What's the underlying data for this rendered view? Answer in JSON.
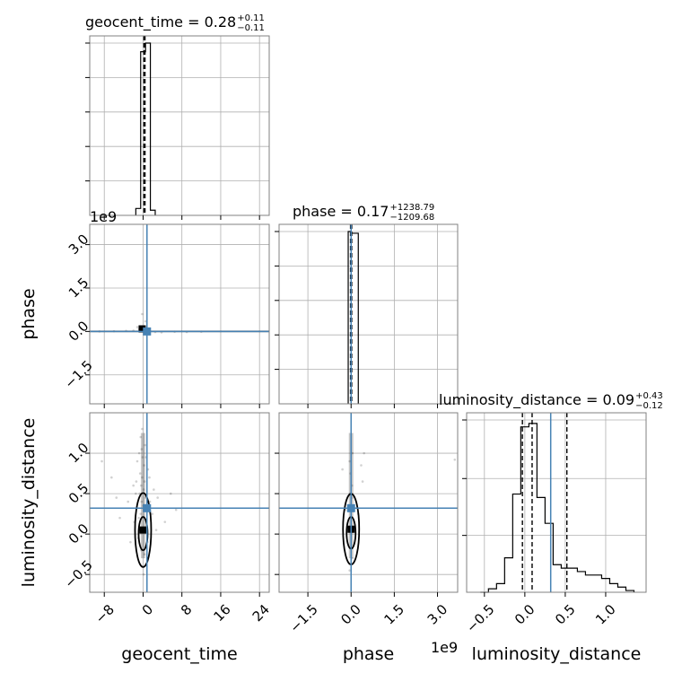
{
  "chart_data": {
    "type": "corner",
    "colors": {
      "truth": "#4682b4",
      "hist": "#000000",
      "grid": "#b0b0b0",
      "frame": "#808080",
      "points": "#000000"
    },
    "grid": true,
    "parameters": [
      {
        "name": "geocent_time",
        "xlabel": "geocent_time",
        "ylabel": "",
        "title": {
          "main": "geocent_time = 0.28",
          "upper": "+0.11",
          "lower": "−0.11"
        },
        "range": [
          -11,
          26
        ],
        "ticks": [
          -8,
          0,
          8,
          16,
          24
        ],
        "tick_labels": [
          "−8",
          "0",
          "8",
          "16",
          "24"
        ],
        "offset_label": "",
        "truth": 0.8,
        "quantiles": [
          0.17,
          0.28,
          0.39
        ],
        "hist_edges": [
          -1.5,
          -0.5,
          0.5,
          1.5,
          2.5
        ],
        "hist_counts": [
          0.04,
          0.95,
          1.0,
          0.03
        ]
      },
      {
        "name": "phase",
        "xlabel": "phase",
        "ylabel": "phase",
        "title": {
          "main": "phase = 0.17",
          "upper": "+1238.79",
          "lower": "−1209.68"
        },
        "range": [
          -2.5,
          3.7
        ],
        "ticks": [
          -1.5,
          0.0,
          1.5,
          3.0
        ],
        "tick_labels": [
          "−1.5",
          "0.0",
          "1.5",
          "3.0"
        ],
        "offset_label": "1e9",
        "truth": 0.0,
        "quantiles": [
          -0.02,
          0.0,
          0.02
        ],
        "hist_edges": [
          -0.1,
          0.0,
          0.25
        ],
        "hist_counts": [
          1.0,
          0.99
        ]
      },
      {
        "name": "luminosity_distance",
        "xlabel": "luminosity_distance",
        "ylabel": "luminosity_distance",
        "title": {
          "main": "luminosity_distance = 0.09",
          "upper": "+0.43",
          "lower": "−0.12"
        },
        "range": [
          -0.72,
          1.5
        ],
        "ticks": [
          -0.5,
          0.0,
          0.5,
          1.0
        ],
        "tick_labels": [
          "−0.5",
          "0.0",
          "0.5",
          "1.0"
        ],
        "offset_label": "",
        "truth": 0.32,
        "quantiles": [
          -0.03,
          0.09,
          0.52
        ],
        "hist_edges": [
          -0.55,
          -0.45,
          -0.35,
          -0.25,
          -0.15,
          -0.05,
          0.05,
          0.15,
          0.25,
          0.35,
          0.45,
          0.55,
          0.65,
          0.75,
          0.85,
          0.95,
          1.05,
          1.15,
          1.25,
          1.35
        ],
        "hist_counts": [
          0.0,
          0.02,
          0.05,
          0.2,
          0.57,
          0.96,
          0.98,
          0.55,
          0.4,
          0.16,
          0.14,
          0.14,
          0.12,
          0.1,
          0.1,
          0.08,
          0.05,
          0.03,
          0.01
        ]
      }
    ],
    "hist_y_ticks": [
      {
        "param": 0,
        "ticks": [
          0.2,
          0.4,
          0.6,
          0.8,
          1.0
        ]
      },
      {
        "param": 1,
        "ticks": [
          0.2,
          0.4,
          0.6,
          0.8,
          1.0
        ]
      },
      {
        "param": 2,
        "ticks": [
          0.33,
          0.66,
          1.0
        ]
      }
    ],
    "contours": [
      {
        "row": 2,
        "col": 0,
        "x": 0.0,
        "y": 0.05,
        "xwidth": 0.35,
        "ywidth": 0.28
      },
      {
        "row": 2,
        "col": 1,
        "x": 0.0,
        "y": 0.06,
        "xwidth": 0.3,
        "ywidth": 0.26
      }
    ],
    "samples_2_0": [
      [
        -0.5,
        1.2
      ],
      [
        -0.3,
        1.05
      ],
      [
        -0.1,
        0.95
      ],
      [
        0.2,
        0.85
      ],
      [
        -0.6,
        0.75
      ],
      [
        -0.2,
        0.7
      ],
      [
        0.3,
        0.65
      ],
      [
        -0.4,
        0.6
      ],
      [
        0.1,
        0.55
      ],
      [
        -0.7,
        0.5
      ],
      [
        0.5,
        0.45
      ],
      [
        -0.3,
        0.4
      ],
      [
        0.0,
        0.35
      ],
      [
        -1.2,
        0.9
      ],
      [
        1.0,
        0.8
      ],
      [
        -1.5,
        0.5
      ],
      [
        1.4,
        0.4
      ],
      [
        -2.0,
        0.6
      ],
      [
        2.2,
        0.55
      ],
      [
        -3.1,
        0.4
      ],
      [
        3.0,
        0.45
      ],
      [
        -4.8,
        0.2
      ],
      [
        4.5,
        0.15
      ],
      [
        -6.5,
        0.7
      ],
      [
        6.8,
        0.3
      ],
      [
        -8.5,
        0.9
      ],
      [
        -0.2,
        1.3
      ],
      [
        0.4,
        1.1
      ],
      [
        -0.9,
        0.2
      ],
      [
        0.7,
        0.1
      ],
      [
        -1.0,
        -0.05
      ],
      [
        0.9,
        -0.1
      ],
      [
        -0.4,
        -0.2
      ],
      [
        0.3,
        -0.25
      ],
      [
        -0.2,
        -0.4
      ],
      [
        0.1,
        -0.5
      ],
      [
        -1.8,
        0.15
      ],
      [
        1.9,
        0.25
      ],
      [
        -2.6,
        -0.1
      ],
      [
        2.7,
        0.05
      ],
      [
        -5.5,
        0.45
      ],
      [
        5.7,
        0.5
      ],
      [
        -0.8,
        1.0
      ],
      [
        0.6,
        0.95
      ],
      [
        -0.5,
        0.25
      ],
      [
        0.2,
        0.3
      ],
      [
        -1.4,
        0.65
      ],
      [
        1.3,
        0.7
      ]
    ],
    "samples_2_1": [
      [
        -0.05,
        0.9
      ],
      [
        0.05,
        1.0
      ],
      [
        -0.02,
        0.75
      ],
      [
        0.03,
        0.6
      ],
      [
        -0.04,
        0.5
      ],
      [
        0.02,
        0.45
      ],
      [
        0.0,
        0.35
      ],
      [
        -0.3,
        0.8
      ],
      [
        0.35,
        0.85
      ],
      [
        0.45,
        1.0
      ],
      [
        -0.2,
        0.3
      ],
      [
        0.25,
        0.25
      ],
      [
        0.05,
        -0.3
      ],
      [
        -0.05,
        -0.45
      ],
      [
        0.4,
        0.65
      ],
      [
        3.6,
        0.92
      ]
    ],
    "samples_1_0": [
      [
        -0.5,
        0.05
      ],
      [
        0.3,
        0.02
      ],
      [
        -0.8,
        0.08
      ],
      [
        -1.2,
        0.15
      ],
      [
        1.0,
        -0.05
      ],
      [
        -0.2,
        0.6
      ],
      [
        0.5,
        0.35
      ],
      [
        -2.0,
        0.03
      ],
      [
        2.5,
        -0.02
      ],
      [
        -3.5,
        0.02
      ],
      [
        3.8,
        -0.03
      ],
      [
        -6.0,
        0.01
      ],
      [
        6.5,
        -0.01
      ],
      [
        -9.0,
        0.0
      ],
      [
        9.0,
        -0.02
      ],
      [
        12.0,
        -0.01
      ]
    ]
  }
}
